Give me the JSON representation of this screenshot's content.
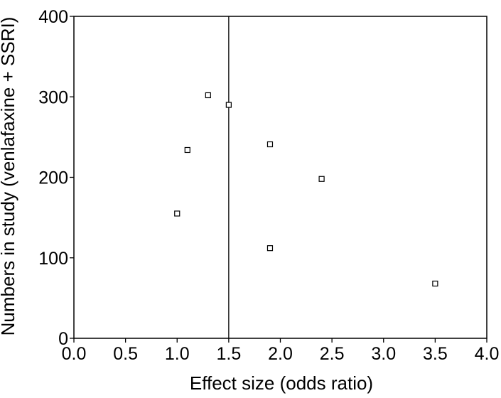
{
  "chart_data": {
    "type": "scatter",
    "title": "",
    "xlabel": "Effect size (odds ratio)",
    "ylabel": "Numbers in study (venlafaxine + SSRI)",
    "xlim": [
      0.0,
      4.0
    ],
    "ylim": [
      0,
      400
    ],
    "x_ticks": [
      "0.0",
      "0.5",
      "1.0",
      "1.5",
      "2.0",
      "2.5",
      "3.0",
      "3.5",
      "4.0"
    ],
    "y_ticks": [
      "0",
      "100",
      "200",
      "300",
      "400"
    ],
    "reference_line_x": 1.5,
    "grid": false,
    "legend": "none",
    "marker": "open-square",
    "points": [
      {
        "x": 1.0,
        "y": 155
      },
      {
        "x": 1.1,
        "y": 234
      },
      {
        "x": 1.3,
        "y": 302
      },
      {
        "x": 1.5,
        "y": 290
      },
      {
        "x": 1.9,
        "y": 241
      },
      {
        "x": 1.9,
        "y": 112
      },
      {
        "x": 2.4,
        "y": 198
      },
      {
        "x": 3.5,
        "y": 68
      }
    ]
  }
}
